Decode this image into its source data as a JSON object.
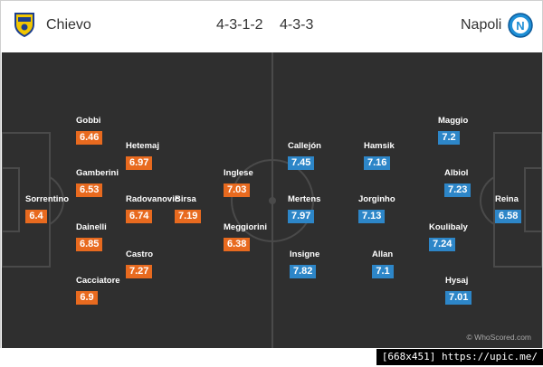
{
  "home": {
    "name": "Chievo",
    "formation": "4-3-1-2",
    "color": "#e86a1f",
    "badge_icon": "chievo-shield-icon",
    "players": [
      {
        "name": "Sorrentino",
        "rating": "6.4"
      },
      {
        "name": "Gobbi",
        "rating": "6.46"
      },
      {
        "name": "Gamberini",
        "rating": "6.53"
      },
      {
        "name": "Dainelli",
        "rating": "6.85"
      },
      {
        "name": "Cacciatore",
        "rating": "6.9"
      },
      {
        "name": "Hetemaj",
        "rating": "6.97"
      },
      {
        "name": "Radovanovic",
        "rating": "6.74"
      },
      {
        "name": "Castro",
        "rating": "7.27"
      },
      {
        "name": "Birsa",
        "rating": "7.19"
      },
      {
        "name": "Inglese",
        "rating": "7.03"
      },
      {
        "name": "Meggiorini",
        "rating": "6.38"
      }
    ]
  },
  "away": {
    "name": "Napoli",
    "formation": "4-3-3",
    "color": "#2d86c8",
    "badge_icon": "napoli-n-icon",
    "players": [
      {
        "name": "Reina",
        "rating": "6.58"
      },
      {
        "name": "Maggio",
        "rating": "7.2"
      },
      {
        "name": "Albiol",
        "rating": "7.23"
      },
      {
        "name": "Koulibaly",
        "rating": "7.24"
      },
      {
        "name": "Hysaj",
        "rating": "7.01"
      },
      {
        "name": "Hamsik",
        "rating": "7.16"
      },
      {
        "name": "Jorginho",
        "rating": "7.13"
      },
      {
        "name": "Allan",
        "rating": "7.1"
      },
      {
        "name": "Callejón",
        "rating": "7.45"
      },
      {
        "name": "Mertens",
        "rating": "7.97"
      },
      {
        "name": "Insigne",
        "rating": "7.82"
      }
    ]
  },
  "watermark": "© WhoScored.com",
  "image_tag": "[668x451] https://upic.me/"
}
